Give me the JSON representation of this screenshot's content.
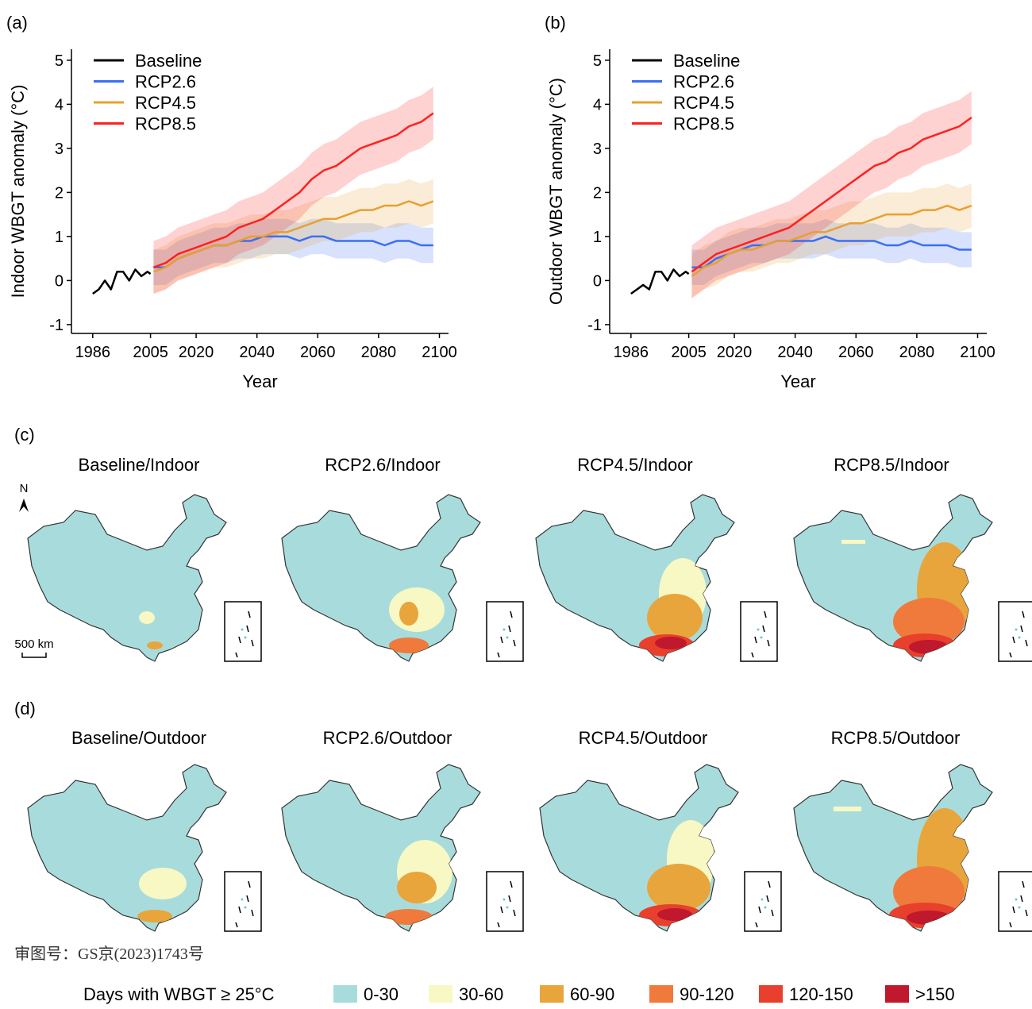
{
  "chart_data": [
    {
      "type": "line",
      "panel_label": "(a)",
      "xlabel": "Year",
      "ylabel": "Indoor WBGT anomaly (°C)",
      "xlim": [
        1979,
        2103
      ],
      "xticks": [
        1986,
        2005,
        2020,
        2040,
        2060,
        2080,
        2100
      ],
      "ylim": [
        -1.2,
        5.25
      ],
      "yticks": [
        -1,
        0,
        1,
        2,
        3,
        4,
        5
      ],
      "legend": "top-left",
      "series": [
        {
          "name": "Baseline",
          "color": "#000000",
          "x": [
            1986,
            1988,
            1990,
            1992,
            1994,
            1996,
            1998,
            2000,
            2002,
            2004,
            2005
          ],
          "values": [
            -0.3,
            -0.2,
            0.0,
            -0.2,
            0.2,
            0.2,
            0.0,
            0.25,
            0.1,
            0.2,
            0.15
          ]
        },
        {
          "name": "RCP2.6",
          "color": "#3b6ff2",
          "x": [
            2006,
            2010,
            2014,
            2018,
            2022,
            2026,
            2030,
            2034,
            2038,
            2042,
            2046,
            2050,
            2054,
            2058,
            2062,
            2066,
            2070,
            2074,
            2078,
            2082,
            2086,
            2090,
            2094,
            2098
          ],
          "values": [
            0.3,
            0.3,
            0.5,
            0.6,
            0.7,
            0.8,
            0.8,
            0.9,
            0.9,
            1.0,
            1.0,
            1.0,
            0.9,
            1.0,
            1.0,
            0.9,
            0.9,
            0.9,
            0.9,
            0.8,
            0.9,
            0.9,
            0.8,
            0.8
          ],
          "lower": [
            -0.1,
            -0.1,
            0.1,
            0.2,
            0.3,
            0.4,
            0.4,
            0.5,
            0.5,
            0.6,
            0.6,
            0.6,
            0.5,
            0.6,
            0.6,
            0.5,
            0.5,
            0.5,
            0.5,
            0.4,
            0.5,
            0.5,
            0.4,
            0.4
          ],
          "upper": [
            0.7,
            0.7,
            0.9,
            1.0,
            1.1,
            1.2,
            1.2,
            1.3,
            1.3,
            1.4,
            1.4,
            1.4,
            1.3,
            1.4,
            1.4,
            1.3,
            1.3,
            1.3,
            1.3,
            1.2,
            1.3,
            1.3,
            1.2,
            1.2
          ]
        },
        {
          "name": "RCP4.5",
          "color": "#e8a030",
          "x": [
            2006,
            2010,
            2014,
            2018,
            2022,
            2026,
            2030,
            2034,
            2038,
            2042,
            2046,
            2050,
            2054,
            2058,
            2062,
            2066,
            2070,
            2074,
            2078,
            2082,
            2086,
            2090,
            2094,
            2098
          ],
          "values": [
            0.2,
            0.3,
            0.5,
            0.6,
            0.7,
            0.8,
            0.8,
            0.9,
            1.0,
            1.0,
            1.1,
            1.1,
            1.2,
            1.3,
            1.4,
            1.4,
            1.5,
            1.6,
            1.6,
            1.7,
            1.7,
            1.8,
            1.7,
            1.8
          ],
          "lower": [
            -0.3,
            -0.2,
            0.0,
            0.1,
            0.2,
            0.3,
            0.3,
            0.4,
            0.5,
            0.5,
            0.6,
            0.6,
            0.7,
            0.8,
            0.9,
            0.9,
            1.0,
            1.1,
            1.1,
            1.2,
            1.2,
            1.3,
            1.2,
            1.3
          ],
          "upper": [
            0.7,
            0.8,
            1.0,
            1.1,
            1.2,
            1.3,
            1.3,
            1.4,
            1.5,
            1.5,
            1.6,
            1.6,
            1.7,
            1.8,
            1.9,
            1.9,
            2.0,
            2.1,
            2.1,
            2.2,
            2.2,
            2.3,
            2.2,
            2.3
          ]
        },
        {
          "name": "RCP8.5",
          "color": "#ff2020",
          "x": [
            2006,
            2010,
            2014,
            2018,
            2022,
            2026,
            2030,
            2034,
            2038,
            2042,
            2046,
            2050,
            2054,
            2058,
            2062,
            2066,
            2070,
            2074,
            2078,
            2082,
            2086,
            2090,
            2094,
            2098
          ],
          "values": [
            0.3,
            0.4,
            0.6,
            0.7,
            0.8,
            0.9,
            1.0,
            1.2,
            1.3,
            1.4,
            1.6,
            1.8,
            2.0,
            2.3,
            2.5,
            2.6,
            2.8,
            3.0,
            3.1,
            3.2,
            3.3,
            3.5,
            3.6,
            3.8
          ],
          "lower": [
            -0.3,
            -0.2,
            0.0,
            0.1,
            0.2,
            0.3,
            0.4,
            0.6,
            0.7,
            0.8,
            1.0,
            1.2,
            1.4,
            1.7,
            1.9,
            2.0,
            2.2,
            2.4,
            2.5,
            2.6,
            2.7,
            2.9,
            3.0,
            3.2
          ],
          "upper": [
            0.9,
            1.0,
            1.2,
            1.3,
            1.4,
            1.5,
            1.6,
            1.8,
            1.9,
            2.0,
            2.2,
            2.4,
            2.6,
            2.9,
            3.1,
            3.2,
            3.4,
            3.6,
            3.7,
            3.8,
            3.9,
            4.1,
            4.2,
            4.4
          ]
        }
      ]
    },
    {
      "type": "line",
      "panel_label": "(b)",
      "xlabel": "Year",
      "ylabel": "Outdoor WBGT anomaly (°C)",
      "xlim": [
        1979,
        2103
      ],
      "xticks": [
        1986,
        2005,
        2020,
        2040,
        2060,
        2080,
        2100
      ],
      "ylim": [
        -1.2,
        5.25
      ],
      "yticks": [
        -1,
        0,
        1,
        2,
        3,
        4,
        5
      ],
      "legend": "top-left",
      "series": [
        {
          "name": "Baseline",
          "color": "#000000",
          "x": [
            1986,
            1988,
            1990,
            1992,
            1994,
            1996,
            1998,
            2000,
            2002,
            2004,
            2005
          ],
          "values": [
            -0.3,
            -0.2,
            -0.1,
            -0.2,
            0.2,
            0.2,
            0.0,
            0.25,
            0.1,
            0.2,
            0.15
          ]
        },
        {
          "name": "RCP2.6",
          "color": "#3b6ff2",
          "x": [
            2006,
            2010,
            2014,
            2018,
            2022,
            2026,
            2030,
            2034,
            2038,
            2042,
            2046,
            2050,
            2054,
            2058,
            2062,
            2066,
            2070,
            2074,
            2078,
            2082,
            2086,
            2090,
            2094,
            2098
          ],
          "values": [
            0.3,
            0.3,
            0.5,
            0.6,
            0.7,
            0.8,
            0.8,
            0.9,
            0.9,
            0.9,
            0.9,
            1.0,
            0.9,
            0.9,
            0.9,
            0.9,
            0.8,
            0.8,
            0.9,
            0.8,
            0.8,
            0.8,
            0.7,
            0.7
          ],
          "lower": [
            -0.1,
            -0.1,
            0.1,
            0.2,
            0.3,
            0.4,
            0.4,
            0.5,
            0.5,
            0.5,
            0.5,
            0.6,
            0.5,
            0.5,
            0.5,
            0.5,
            0.4,
            0.4,
            0.5,
            0.4,
            0.4,
            0.4,
            0.3,
            0.3
          ],
          "upper": [
            0.7,
            0.7,
            0.9,
            1.0,
            1.1,
            1.2,
            1.2,
            1.3,
            1.3,
            1.3,
            1.3,
            1.4,
            1.3,
            1.3,
            1.3,
            1.3,
            1.2,
            1.2,
            1.3,
            1.2,
            1.2,
            1.2,
            1.1,
            1.1
          ]
        },
        {
          "name": "RCP4.5",
          "color": "#e8a030",
          "x": [
            2006,
            2010,
            2014,
            2018,
            2022,
            2026,
            2030,
            2034,
            2038,
            2042,
            2046,
            2050,
            2054,
            2058,
            2062,
            2066,
            2070,
            2074,
            2078,
            2082,
            2086,
            2090,
            2094,
            2098
          ],
          "values": [
            0.1,
            0.3,
            0.4,
            0.6,
            0.7,
            0.7,
            0.8,
            0.9,
            0.9,
            1.0,
            1.1,
            1.1,
            1.2,
            1.3,
            1.3,
            1.4,
            1.5,
            1.5,
            1.5,
            1.6,
            1.6,
            1.7,
            1.6,
            1.7
          ],
          "lower": [
            -0.4,
            -0.2,
            -0.1,
            0.1,
            0.2,
            0.2,
            0.3,
            0.4,
            0.4,
            0.5,
            0.6,
            0.6,
            0.7,
            0.8,
            0.8,
            0.9,
            1.0,
            1.0,
            1.0,
            1.1,
            1.1,
            1.2,
            1.1,
            1.2
          ],
          "upper": [
            0.6,
            0.8,
            0.9,
            1.1,
            1.2,
            1.2,
            1.3,
            1.4,
            1.4,
            1.5,
            1.6,
            1.6,
            1.7,
            1.8,
            1.8,
            1.9,
            2.0,
            2.0,
            2.0,
            2.1,
            2.1,
            2.2,
            2.1,
            2.2
          ]
        },
        {
          "name": "RCP8.5",
          "color": "#ff2020",
          "x": [
            2006,
            2010,
            2014,
            2018,
            2022,
            2026,
            2030,
            2034,
            2038,
            2042,
            2046,
            2050,
            2054,
            2058,
            2062,
            2066,
            2070,
            2074,
            2078,
            2082,
            2086,
            2090,
            2094,
            2098
          ],
          "values": [
            0.2,
            0.4,
            0.6,
            0.7,
            0.8,
            0.9,
            1.0,
            1.1,
            1.2,
            1.4,
            1.6,
            1.8,
            2.0,
            2.2,
            2.4,
            2.6,
            2.7,
            2.9,
            3.0,
            3.2,
            3.3,
            3.4,
            3.5,
            3.7
          ],
          "lower": [
            -0.4,
            -0.2,
            0.0,
            0.1,
            0.2,
            0.3,
            0.4,
            0.5,
            0.6,
            0.8,
            1.0,
            1.2,
            1.4,
            1.6,
            1.8,
            2.0,
            2.1,
            2.3,
            2.4,
            2.6,
            2.7,
            2.8,
            2.9,
            3.1
          ],
          "upper": [
            0.8,
            1.0,
            1.2,
            1.3,
            1.4,
            1.5,
            1.6,
            1.7,
            1.8,
            2.0,
            2.2,
            2.4,
            2.6,
            2.8,
            3.0,
            3.2,
            3.3,
            3.5,
            3.6,
            3.8,
            3.9,
            4.0,
            4.1,
            4.3
          ]
        }
      ]
    }
  ],
  "maps": {
    "rows": [
      {
        "panel_label": "(c)",
        "titles": [
          "Baseline/Indoor",
          "RCP2.6/Indoor",
          "RCP4.5/Indoor",
          "RCP8.5/Indoor"
        ]
      },
      {
        "panel_label": "(d)",
        "titles": [
          "Baseline/Outdoor",
          "RCP2.6/Outdoor",
          "RCP4.5/Outdoor",
          "RCP8.5/Outdoor"
        ]
      }
    ],
    "north": "N",
    "scale_bar": "500 km",
    "legend": {
      "title": "Days with WBGT ≥ 25°C",
      "classes": [
        {
          "label": "0-30",
          "color": "#a8dcdc"
        },
        {
          "label": "30-60",
          "color": "#f8f8c4"
        },
        {
          "label": "60-90",
          "color": "#e8a53c"
        },
        {
          "label": "90-120",
          "color": "#f07a3c"
        },
        {
          "label": "120-150",
          "color": "#e8402c"
        },
        {
          "label": ">150",
          "color": "#c0182c"
        }
      ]
    }
  },
  "approval_note": "审图号：GS京(2023)1743号"
}
